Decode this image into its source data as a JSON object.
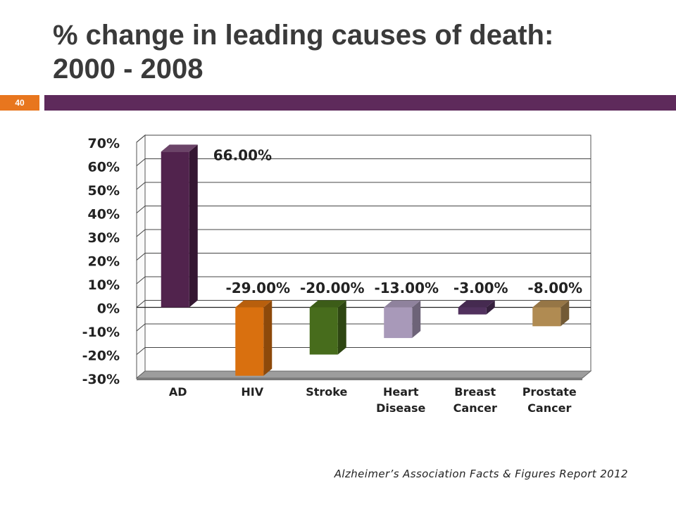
{
  "slide": {
    "title_line1": "% change in leading causes of death:",
    "title_line2": "2000 - 2008",
    "page_number": "40",
    "source": "Alzheimer’s Association Facts & Figures Report 2012"
  },
  "colors": {
    "header_bar": "#5e2a5b",
    "page_badge": "#e8761e"
  },
  "chart_data": {
    "type": "bar",
    "title": "",
    "xlabel": "",
    "ylabel": "",
    "ylim": [
      -30,
      70
    ],
    "yticks": [
      70,
      60,
      50,
      40,
      30,
      20,
      10,
      0,
      -10,
      -20,
      -30
    ],
    "ytick_labels": [
      "70%",
      "60%",
      "50%",
      "40%",
      "30%",
      "20%",
      "10%",
      "0%",
      "-10%",
      "-20%",
      "-30%"
    ],
    "grid": true,
    "categories": [
      [
        "AD"
      ],
      [
        "HIV"
      ],
      [
        "Stroke"
      ],
      [
        "Heart",
        "Disease"
      ],
      [
        "Breast",
        "Cancer"
      ],
      [
        "Prostate",
        "Cancer"
      ]
    ],
    "values": [
      66,
      -29,
      -20,
      -13,
      -3,
      -8
    ],
    "data_labels": [
      "66.00%",
      "-29.00%",
      "-20.00%",
      "-13.00%",
      "-3.00%",
      "-8.00%"
    ],
    "bar_colors": [
      "#51234d",
      "#d9700f",
      "#476c1c",
      "#a899b9",
      "#51315e",
      "#b08b52"
    ]
  }
}
